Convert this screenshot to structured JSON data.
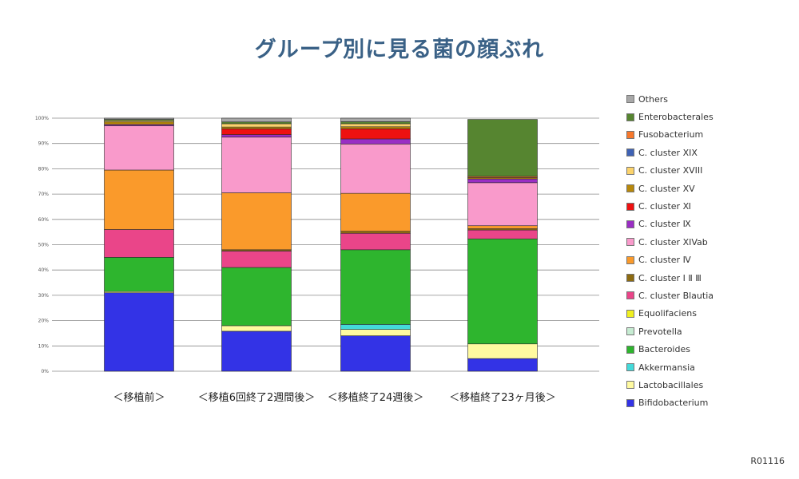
{
  "title": "グループ別に見る菌の顔ぶれ",
  "doc_id": "R01116",
  "chart_data": {
    "type": "stacked-bar",
    "title": "グループ別に見る菌の顔ぶれ",
    "ylim": [
      0,
      100
    ],
    "y_ticks": [
      "0%",
      "10%",
      "20%",
      "30%",
      "40%",
      "50%",
      "60%",
      "70%",
      "80%",
      "90%",
      "100%"
    ],
    "categories": [
      "＜移植前＞",
      "＜移植6回終了2週間後＞",
      "＜移植終了24週後＞",
      "＜移植終了23ヶ月後＞"
    ],
    "series": [
      {
        "name": "Bifidobacterium",
        "color": "#3333e6",
        "values": [
          31,
          15.8,
          14,
          5
        ]
      },
      {
        "name": "Lactobacillales",
        "color": "#fffaa0",
        "values": [
          0.5,
          2.2,
          2.5,
          5.8
        ]
      },
      {
        "name": "Akkermansia",
        "color": "#44dada",
        "values": [
          0,
          0,
          2,
          0
        ]
      },
      {
        "name": "Bacteroides",
        "color": "#2eb52e",
        "values": [
          13.5,
          23,
          29.5,
          41.5
        ]
      },
      {
        "name": "Prevotella",
        "color": "#c6ecd2",
        "values": [
          0,
          0,
          0,
          0
        ]
      },
      {
        "name": "Equolifaciens",
        "color": "#f0f020",
        "values": [
          0,
          0,
          0,
          0
        ]
      },
      {
        "name": "C. cluster Blautia",
        "color": "#ea4589",
        "values": [
          11,
          6.5,
          6.5,
          3.5
        ]
      },
      {
        "name": "C. cluster ⅠⅡⅢ",
        "color": "#8d6b10",
        "values": [
          0,
          0.5,
          0.8,
          0.5
        ]
      },
      {
        "name": "C. cluster Ⅳ",
        "color": "#fa9a2b",
        "values": [
          23.5,
          22.5,
          15,
          1.2
        ]
      },
      {
        "name": "C. cluster XIVab",
        "color": "#f99acb",
        "values": [
          17.5,
          22,
          19.5,
          17
        ]
      },
      {
        "name": "C. cluster Ⅸ",
        "color": "#9a2ec4",
        "values": [
          0.5,
          1,
          2,
          1.5
        ]
      },
      {
        "name": "C. cluster Ⅺ",
        "color": "#ee1111",
        "values": [
          0,
          2.3,
          4,
          0
        ]
      },
      {
        "name": "C. cluster XV",
        "color": "#b8880a",
        "values": [
          1,
          0.7,
          0.8,
          0.5
        ]
      },
      {
        "name": "C. cluster XVIII",
        "color": "#fcd36b",
        "values": [
          0.5,
          1.3,
          1.2,
          0
        ]
      },
      {
        "name": "C. cluster XIX",
        "color": "#3f62b5",
        "values": [
          0,
          0,
          0,
          0
        ]
      },
      {
        "name": "Fusobacterium",
        "color": "#f7782c",
        "values": [
          0,
          0,
          0,
          0.5
        ]
      },
      {
        "name": "Enterobacterales",
        "color": "#568530",
        "values": [
          0.5,
          0.7,
          0.8,
          22.5
        ]
      },
      {
        "name": "Others",
        "color": "#a8a8a8",
        "values": [
          0.5,
          1.5,
          1.4,
          0
        ]
      }
    ],
    "legend_order": [
      "Others",
      "Enterobacterales",
      "Fusobacterium",
      "C. cluster XIX",
      "C. cluster XVIII",
      "C. cluster XV",
      "C. cluster Ⅺ",
      "C. cluster Ⅸ",
      "C. cluster XIVab",
      "C. cluster Ⅳ",
      "C. cluster ⅠⅡⅢ",
      "C. cluster Blautia",
      "Equolifaciens",
      "Prevotella",
      "Bacteroides",
      "Akkermansia",
      "Lactobacillales",
      "Bifidobacterium"
    ],
    "legend_labels": [
      "Others",
      "Enterobacterales",
      "Fusobacterium",
      "C. cluster XIX",
      "C. cluster XVIII",
      "C. cluster XV",
      "C. cluster Ⅺ",
      "C. cluster Ⅸ",
      "C. cluster XIVab",
      "C. cluster Ⅳ",
      "C. cluster Ⅰ Ⅱ Ⅲ",
      "C. cluster Blautia",
      "Equolifaciens",
      "Prevotella",
      "Bacteroides",
      "Akkermansia",
      "Lactobacillales",
      "Bifidobacterium"
    ]
  }
}
